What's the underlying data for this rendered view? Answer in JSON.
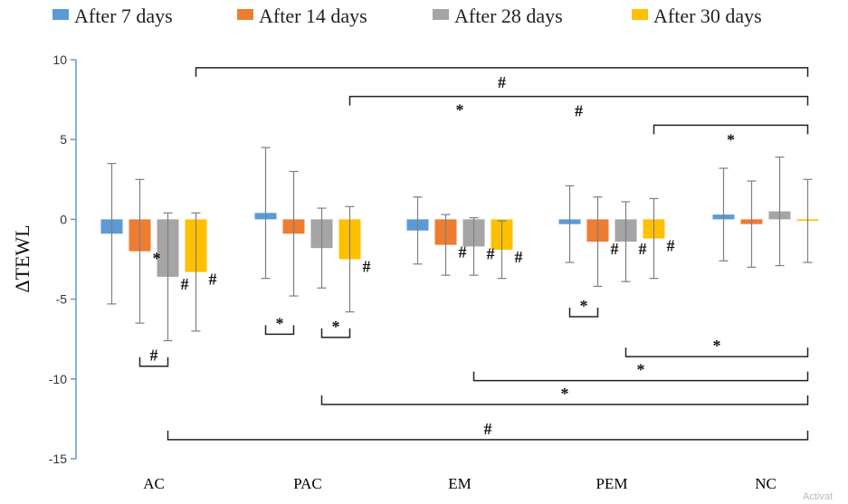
{
  "chart_data": {
    "type": "bar",
    "title": "",
    "xlabel": "",
    "ylabel": "ΔTEWL",
    "ylim": [
      -15,
      10
    ],
    "yticks": [
      -15,
      -10,
      -5,
      0,
      5,
      10
    ],
    "grid": false,
    "legend_position": "top",
    "categories": [
      "AC",
      "PAC",
      "EM",
      "PEM",
      "NC"
    ],
    "series": [
      {
        "name": "After 7 days",
        "color": "#5b9bd5",
        "values": [
          -0.9,
          0.4,
          -0.7,
          -0.3,
          0.3
        ],
        "error": [
          4.4,
          4.1,
          2.1,
          2.4,
          2.9
        ]
      },
      {
        "name": "After 14 days",
        "color": "#ed7d31",
        "values": [
          -2.0,
          -0.9,
          -1.6,
          -1.4,
          -0.3
        ],
        "error": [
          4.5,
          3.9,
          1.9,
          2.8,
          2.7
        ]
      },
      {
        "name": "After 28 days",
        "color": "#a5a5a5",
        "values": [
          -3.6,
          -1.8,
          -1.7,
          -1.4,
          0.5
        ],
        "error": [
          4.0,
          2.5,
          1.8,
          2.5,
          3.4
        ]
      },
      {
        "name": "After 30 days",
        "color": "#ffc000",
        "values": [
          -3.3,
          -2.5,
          -1.9,
          -1.2,
          -0.1
        ],
        "error": [
          3.7,
          3.3,
          1.8,
          2.5,
          2.6
        ]
      }
    ],
    "point_marks": [
      {
        "category": "AC",
        "series": 1,
        "text": "*"
      },
      {
        "category": "AC",
        "series": 2,
        "text": "#"
      },
      {
        "category": "AC",
        "series": 3,
        "text": "#"
      },
      {
        "category": "PAC",
        "series": 3,
        "text": "#"
      },
      {
        "category": "EM",
        "series": 1,
        "text": "#"
      },
      {
        "category": "EM",
        "series": 2,
        "text": "#"
      },
      {
        "category": "EM",
        "series": 3,
        "text": "#"
      },
      {
        "category": "PEM",
        "series": 1,
        "text": "#"
      },
      {
        "category": "PEM",
        "series": 2,
        "text": "#"
      },
      {
        "category": "PEM",
        "series": 3,
        "text": "#"
      }
    ],
    "significance_brackets": [
      {
        "from": "AC",
        "from_series": 3,
        "to": "NC",
        "to_series": 3,
        "y": 9.5,
        "text": "#",
        "direction": "top"
      },
      {
        "from": "PAC",
        "from_series": 3,
        "to": "NC",
        "to_series": 3,
        "y": 7.7,
        "text": "#",
        "direction": "top"
      },
      {
        "from": "PEM",
        "from_series": 3,
        "to": "NC",
        "to_series": 3,
        "y": 5.9,
        "text": "*",
        "direction": "top"
      },
      {
        "from": "PAC",
        "from_series": 0,
        "to": "PAC",
        "from_series2": 1,
        "to_series": 1,
        "y": -7.2,
        "text": "*",
        "direction": "bottom"
      },
      {
        "from": "PAC",
        "from_series": 2,
        "to": "PAC",
        "to_series": 3,
        "y": -7.4,
        "text": "*",
        "direction": "bottom"
      },
      {
        "from": "AC",
        "from_series": 1,
        "to": "AC",
        "to_series": 2,
        "y": -9.2,
        "text": "#",
        "direction": "bottom"
      },
      {
        "from": "PEM",
        "from_series": 0,
        "to": "PEM",
        "to_series": 1,
        "y": -6.1,
        "text": "*",
        "direction": "bottom"
      },
      {
        "from": "PEM",
        "from_series": 2,
        "to": "NC",
        "to_series": 3,
        "y": -8.6,
        "text": "*",
        "direction": "bottom"
      },
      {
        "from": "EM",
        "from_series": 2,
        "to": "NC",
        "to_series": 3,
        "y": -10.1,
        "text": "*",
        "direction": "bottom"
      },
      {
        "from": "PAC",
        "from_series": 2,
        "to": "NC",
        "to_series": 3,
        "y": -11.6,
        "text": "*",
        "direction": "bottom"
      },
      {
        "from": "AC",
        "from_series": 2,
        "to": "NC",
        "to_series": 3,
        "y": -13.8,
        "text": "#",
        "direction": "bottom"
      }
    ],
    "floating_marks": [
      {
        "x_between": [
          "PAC",
          "PEM"
        ],
        "y": 6.5,
        "text": "*"
      }
    ]
  },
  "corner_note": "Activat"
}
